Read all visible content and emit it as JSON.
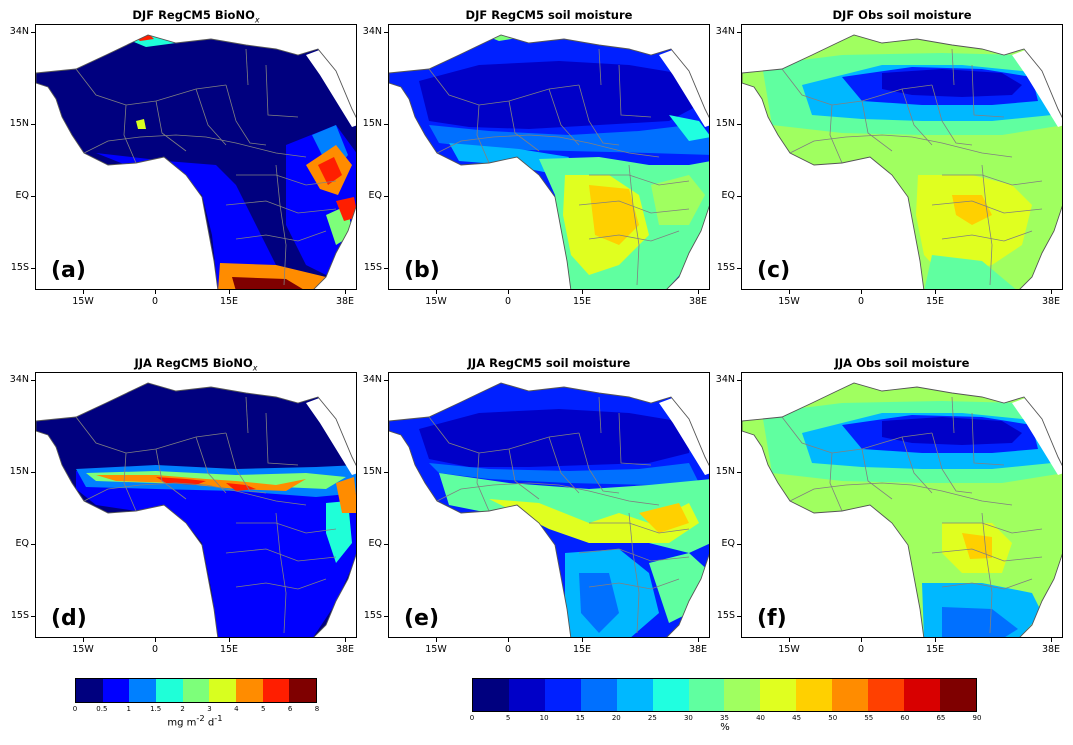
{
  "panels": [
    {
      "title": "DJF RegCM5 BioNO",
      "title_sub": "x",
      "label": "(a)",
      "kind": "bio",
      "season": "djf"
    },
    {
      "title": "DJF RegCM5 soil moisture",
      "title_sub": "",
      "label": "(b)",
      "kind": "sm_model",
      "season": "djf"
    },
    {
      "title": "DJF Obs soil moisture",
      "title_sub": "",
      "label": "(c)",
      "kind": "sm_obs",
      "season": "djf"
    },
    {
      "title": "JJA RegCM5 BioNO",
      "title_sub": "x",
      "label": "(d)",
      "kind": "bio",
      "season": "jja"
    },
    {
      "title": "JJA RegCM5 soil moisture",
      "title_sub": "",
      "label": "(e)",
      "kind": "sm_model",
      "season": "jja"
    },
    {
      "title": "JJA Obs soil moisture",
      "title_sub": "",
      "label": "(f)",
      "kind": "sm_obs",
      "season": "jja"
    }
  ],
  "lat_ticks": [
    "34N",
    "15N",
    "EQ",
    "15S"
  ],
  "lon_ticks": [
    "15W",
    "0",
    "15E",
    "38E"
  ],
  "colorbar_bio": {
    "colors": [
      "#00007f",
      "#0000ff",
      "#0080ff",
      "#1fffd8",
      "#7dff7a",
      "#d8ff1f",
      "#ff8c00",
      "#ff1e00",
      "#7f0000"
    ],
    "ticks": [
      "0",
      "0.5",
      "1",
      "1.5",
      "2",
      "3",
      "4",
      "5",
      "6",
      "8"
    ],
    "unit_html": "mg m<sup>-2</sup> d<sup>-1</sup>"
  },
  "colorbar_sm": {
    "colors": [
      "#00007f",
      "#0000c8",
      "#0020ff",
      "#0070ff",
      "#00b8ff",
      "#20ffe0",
      "#60ffa0",
      "#a0ff60",
      "#e0ff20",
      "#ffd000",
      "#ff8c00",
      "#ff4000",
      "#d80000",
      "#7f0000"
    ],
    "ticks": [
      "0",
      "5",
      "10",
      "15",
      "20",
      "25",
      "30",
      "35",
      "40",
      "45",
      "50",
      "55",
      "60",
      "65",
      "90"
    ],
    "unit": "%"
  }
}
